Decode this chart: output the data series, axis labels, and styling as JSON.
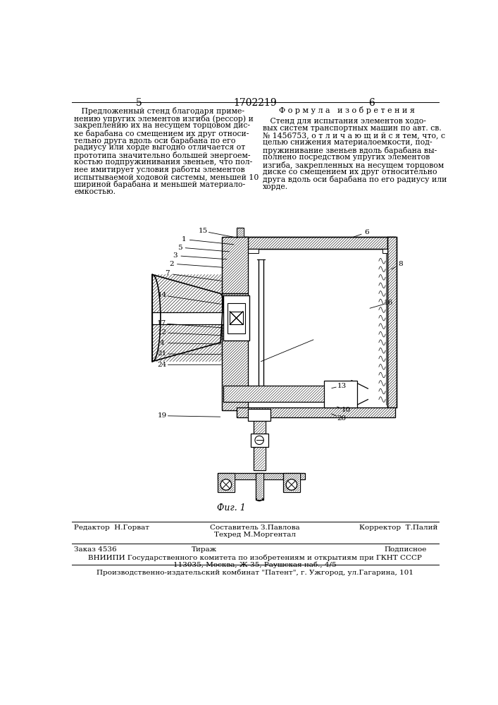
{
  "bg_color": "#ffffff",
  "page_number_left": "5",
  "page_number_center": "1702219",
  "page_number_right": "6",
  "left_text_lines": [
    "   Предложенный стенд благодаря приме-",
    "нению упругих элементов изгиба (рессор) и",
    "закреплению их на несущем торцовом дис-",
    "ке барабана со смещением их друг относи-",
    "тельно друга вдоль оси барабана по его",
    "радиусу или хорде выгодно отличается от",
    "прототипа значительно большей энергоем-",
    "костью подпружинивания звеньев, что пол-",
    "нее имитирует условия работы элементов",
    "испытываемой ходовой системы, меньшей 10",
    "шириной барабана и меньшей материало-",
    "емкостью."
  ],
  "right_header": "Ф о р м у л а   и з о б р е т е н и я",
  "right_text_lines": [
    "   Стенд для испытания элементов ходо-",
    "вых систем транспортных машин по авт. св.",
    "№ 1456753, о т л и ч а ю щ и й с я тем, что, с",
    "целью снижения материалоемкости, под-",
    "пружинивание звеньев вдоль барабана вы-",
    "полнено посредством упругих элементов",
    "изгиба, закрепленных на несущем торцовом",
    "диске со смещением их друг относительно",
    "друга вдоль оси барабана по его радиусу или",
    "хорде."
  ],
  "fig_caption": "Фиг. 1",
  "editor_label": "Редактор",
  "editor_name": "Н.Горват",
  "composer_label": "Составитель З.Павлова",
  "techred_label": "Техред М.Моргентал",
  "corrector_label": "Корректор",
  "corrector_name": "Т.Палий",
  "order_text": "Заказ 4536",
  "tirazh_text": "Тираж",
  "podpisnoe_text": "Подписное",
  "vniiipi_line1": "ВНИИПИ Государственного комитета по изобретениям и открытиям при ГКНТ СССР",
  "vniiipi_line2": "113035, Москва, Ж-35, Раушская наб., 4/5",
  "publisher_line": "Производственно-издательский комбинат \"Патент\", г. Ужгород, ул.Гагарина, 101"
}
